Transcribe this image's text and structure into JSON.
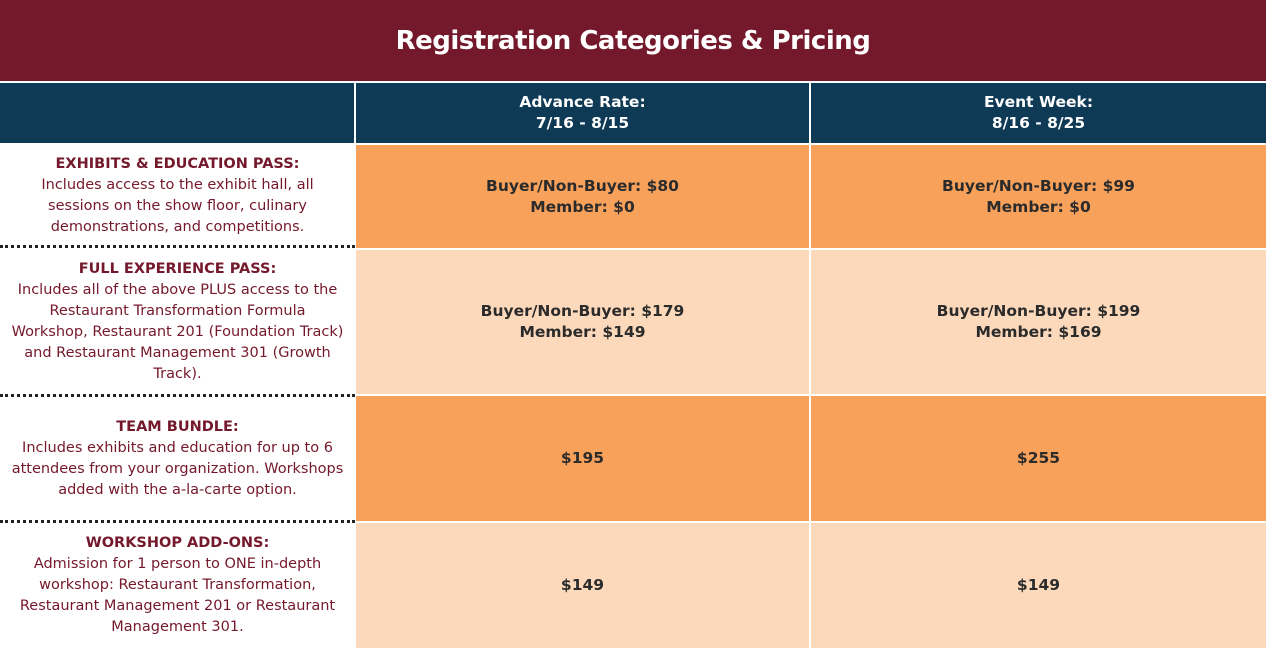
{
  "title": "Registration Categories & Pricing",
  "columns": [
    {
      "line1": "Advance Rate:",
      "line2": "7/16 - 8/15"
    },
    {
      "line1": "Event Week:",
      "line2": "8/16 - 8/25"
    }
  ],
  "rows": [
    {
      "title": "EXHIBITS & EDUCATION PASS:",
      "description": "Includes access to the exhibit hall, all sessions on the show floor, culinary demonstrations, and competitions.",
      "prices": [
        {
          "line1": "Buyer/Non-Buyer: $80",
          "line2": "Member: $0"
        },
        {
          "line1": "Buyer/Non-Buyer: $99",
          "line2": "Member: $0"
        }
      ]
    },
    {
      "title": "FULL EXPERIENCE PASS:",
      "description": "Includes all of the above PLUS access to the Restaurant Transformation Formula Workshop, Restaurant 201 (Foundation Track) and Restaurant Management 301 (Growth Track).",
      "prices": [
        {
          "line1": "Buyer/Non-Buyer: $179",
          "line2": "Member: $149"
        },
        {
          "line1": "Buyer/Non-Buyer: $199",
          "line2": "Member: $169"
        }
      ]
    },
    {
      "title": "TEAM BUNDLE:",
      "description": "Includes exhibits and education for up to 6 attendees from your organization. Workshops added with the a-la-carte option.",
      "prices": [
        {
          "line1": "$195",
          "line2": ""
        },
        {
          "line1": "$255",
          "line2": ""
        }
      ]
    },
    {
      "title": "WORKSHOP ADD-ONS:",
      "description": "Admission for 1 person to ONE in-depth workshop: Restaurant Transformation, Restaurant Management 201 or Restaurant Management 301.",
      "prices": [
        {
          "line1": "$149",
          "line2": ""
        },
        {
          "line1": "$149",
          "line2": ""
        }
      ]
    }
  ]
}
